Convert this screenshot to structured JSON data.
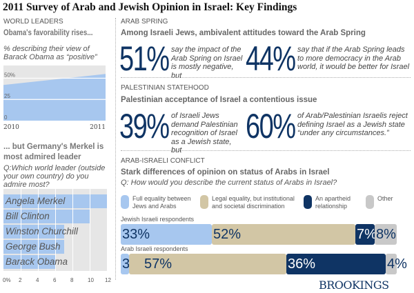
{
  "title": "2011 Survey of Arab and Jewish Opinion in Israel: Key Findings",
  "world_leaders": {
    "section": "WORLD LEADERS",
    "headline1": "Obama's favorability rises...",
    "subtitle1": "% describing their view of Barack Obama as “positive”",
    "headline2": "... but Germany's Merkel is most admired leader",
    "question": "Q:Which world leader (outside your own country) do you admire most?"
  },
  "arab_spring": {
    "section": "ARAB SPRING",
    "headline": "Among Israeli Jews, ambivalent attitudes toward the Arab Spring",
    "stat1": "51%",
    "text1": "say the impact of the Arab Spring on Israel is mostly negative, but",
    "stat2": "44%",
    "text2": "say that if the Arab Spring leads to more democracy in the Arab world, it would be better for Israel"
  },
  "statehood": {
    "section": "PALESTINIAN STATEHOOD",
    "headline": "Palestinian acceptance of Israel a contentious issue",
    "stat1": "39%",
    "text1": "of Israeli Jews demand Palestinian recognition of Israel as a Jewish state, but",
    "stat2": "60%",
    "text2": "of Arab/Palestinian Israelis reject defining Israel as a Jewish state “under any circumstances.”"
  },
  "conflict": {
    "section": "ARAB-ISRAELI CONFLICT",
    "headline": "Stark differences of opinion on status of Arabs in Israel",
    "question": "Q: How would you describe the current status of Arabs in Israel?"
  },
  "brand": "BROOKINGS",
  "chart_data": [
    {
      "type": "area",
      "title": "Obama's favorability rises...",
      "ylabel": "% describing their view of Barack Obama as “positive”",
      "x": [
        "2010",
        "2011"
      ],
      "values": [
        42,
        55
      ],
      "ylim": [
        0,
        65
      ],
      "yticks": [
        "0",
        "25",
        "50%"
      ],
      "yticks_values": [
        0,
        25,
        50
      ],
      "grid": true,
      "color": "#a7c7ef"
    },
    {
      "type": "bar",
      "orientation": "horizontal",
      "title": "... but Germany's Merkel is most admired leader",
      "categories": [
        "Angela Merkel",
        "Bill Clinton",
        "Winston Churchill",
        "George Bush",
        "Barack Obama"
      ],
      "values": [
        12,
        10,
        7,
        7,
        6
      ],
      "xlim": [
        0,
        12
      ],
      "xticks": [
        "0%",
        "2",
        "4",
        "6",
        "8",
        "10",
        "12"
      ],
      "grid": true,
      "color": "#a7c7ef"
    },
    {
      "type": "bar",
      "orientation": "horizontal",
      "stacked": true,
      "title": "Stark differences of opinion on status of Arabs in Israel",
      "legend": [
        "Full equality between Jews and Arabs",
        "Legal equality, but institutional and societal discrimination",
        "An apartheid relationship",
        "Other"
      ],
      "colors": [
        "#a7c7ef",
        "#d2c6a5",
        "#0f3464",
        "#c8c8c8"
      ],
      "categories": [
        "Jewish Israeli respondents",
        "Arab Israeli respondents"
      ],
      "series": [
        {
          "name": "Full equality between Jews and Arabs",
          "values": [
            33,
            3
          ]
        },
        {
          "name": "Legal equality, but institutional and societal discrimination",
          "values": [
            52,
            57
          ]
        },
        {
          "name": "An apartheid relationship",
          "values": [
            7,
            36
          ]
        },
        {
          "name": "Other",
          "values": [
            8,
            4
          ]
        }
      ]
    }
  ]
}
